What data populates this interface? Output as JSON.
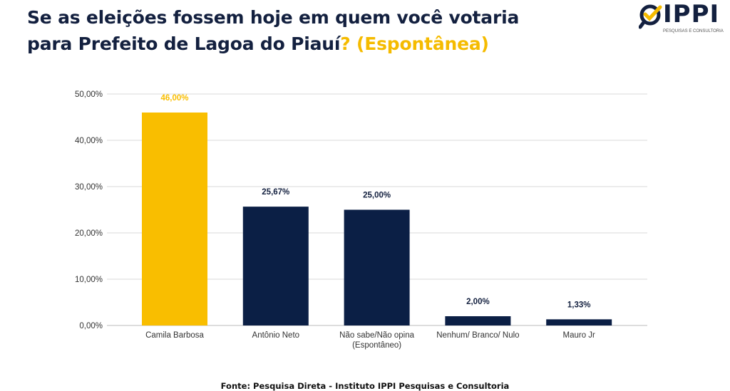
{
  "title": {
    "line1": "Se as eleições fossem hoje em quem você votaria",
    "line2": "para Prefeito de Lagoa do Piauí",
    "highlight": "? (Espontânea)"
  },
  "logo": {
    "name": "IPPI",
    "subtitle": "PESQUISAS E CONSULTORIA"
  },
  "source": "Fonte: Pesquisa Direta - Instituto IPPI Pesquisas e Consultoria",
  "colors": {
    "highlight": "#F9BE00",
    "bars": "#0B1F45",
    "title": "#13203F"
  },
  "chart_data": {
    "type": "bar",
    "categories": [
      "Camila Barbosa",
      "Antônio Neto",
      "Não sabe/Não opina (Espontâneo)",
      "Nenhum/ Branco/ Nulo",
      "Mauro Jr"
    ],
    "values": [
      46.0,
      25.67,
      25.0,
      2.0,
      1.33
    ],
    "data_labels": [
      "46,00%",
      "25,67%",
      "25,00%",
      "2,00%",
      "1,33%"
    ],
    "bar_colors": [
      "#F9BE00",
      "#0B1F45",
      "#0B1F45",
      "#0B1F45",
      "#0B1F45"
    ],
    "yticks": [
      "0,00%",
      "10,00%",
      "20,00%",
      "30,00%",
      "40,00%",
      "50,00%"
    ],
    "ylim": [
      0,
      50
    ],
    "grid": true,
    "legend": "none"
  }
}
